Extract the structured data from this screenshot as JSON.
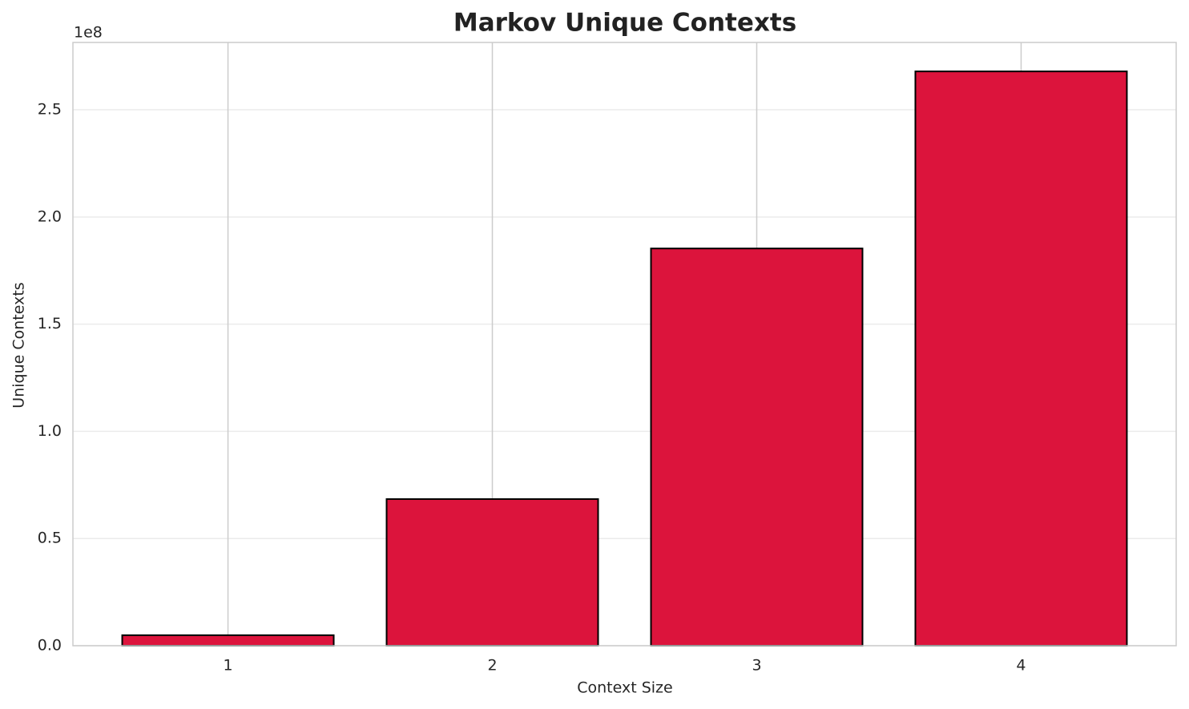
{
  "chart_data": {
    "type": "bar",
    "title": "Markov Unique Contexts",
    "x_label": "Context Size",
    "y_label": "Unique Contexts",
    "y_offset_label": "1e8",
    "categories": [
      "1",
      "2",
      "3",
      "4"
    ],
    "values": [
      4900000,
      68400000,
      185300000,
      267900000
    ],
    "color": "#dc143c",
    "edgecolor": "#000000",
    "ylim": [
      0,
      281400000
    ],
    "yticks": [
      {
        "value": 0,
        "label": "0.0"
      },
      {
        "value": 50000000,
        "label": "0.5"
      },
      {
        "value": 100000000,
        "label": "1.0"
      },
      {
        "value": 150000000,
        "label": "1.5"
      },
      {
        "value": 200000000,
        "label": "2.0"
      },
      {
        "value": 250000000,
        "label": "2.5"
      }
    ],
    "grid": true
  }
}
